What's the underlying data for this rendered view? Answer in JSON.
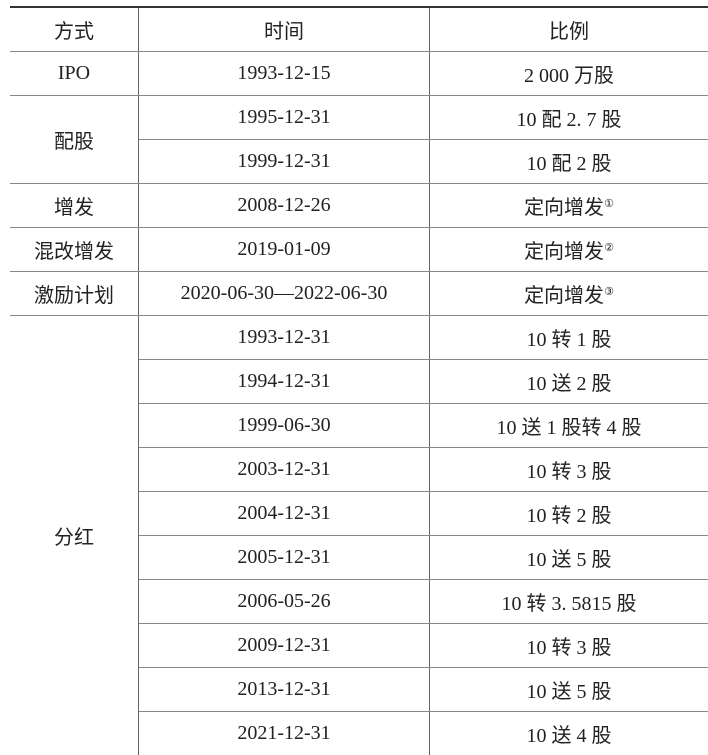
{
  "headers": [
    "方式",
    "时间",
    "比例"
  ],
  "rows": {
    "ipo": {
      "method": "IPO",
      "date": "1993-12-15",
      "ratio": "2 000 万股"
    },
    "peigu": {
      "method": "配股",
      "items": [
        {
          "date": "1995-12-31",
          "ratio": "10 配 2. 7 股"
        },
        {
          "date": "1999-12-31",
          "ratio": "10 配 2 股"
        }
      ]
    },
    "zengfa": {
      "method": "增发",
      "date": "2008-12-26",
      "ratio": "定向增发",
      "note": "①"
    },
    "hungai": {
      "method": "混改增发",
      "date": "2019-01-09",
      "ratio": "定向增发",
      "note": "②"
    },
    "jili": {
      "method": "激励计划",
      "date": "2020-06-30—2022-06-30",
      "ratio": "定向增发",
      "note": "③"
    },
    "fenhong": {
      "method": "分红",
      "items": [
        {
          "date": "1993-12-31",
          "ratio": "10 转 1 股"
        },
        {
          "date": "1994-12-31",
          "ratio": "10 送 2 股"
        },
        {
          "date": "1999-06-30",
          "ratio": "10 送 1 股转 4 股"
        },
        {
          "date": "2003-12-31",
          "ratio": "10 转 3 股"
        },
        {
          "date": "2004-12-31",
          "ratio": "10 转 2 股"
        },
        {
          "date": "2005-12-31",
          "ratio": "10 送 5 股"
        },
        {
          "date": "2006-05-26",
          "ratio": "10 转 3. 5815 股"
        },
        {
          "date": "2009-12-31",
          "ratio": "10 转 3 股"
        },
        {
          "date": "2013-12-31",
          "ratio": "10 送 5 股"
        },
        {
          "date": "2021-12-31",
          "ratio": "10 送 4 股"
        }
      ]
    }
  }
}
